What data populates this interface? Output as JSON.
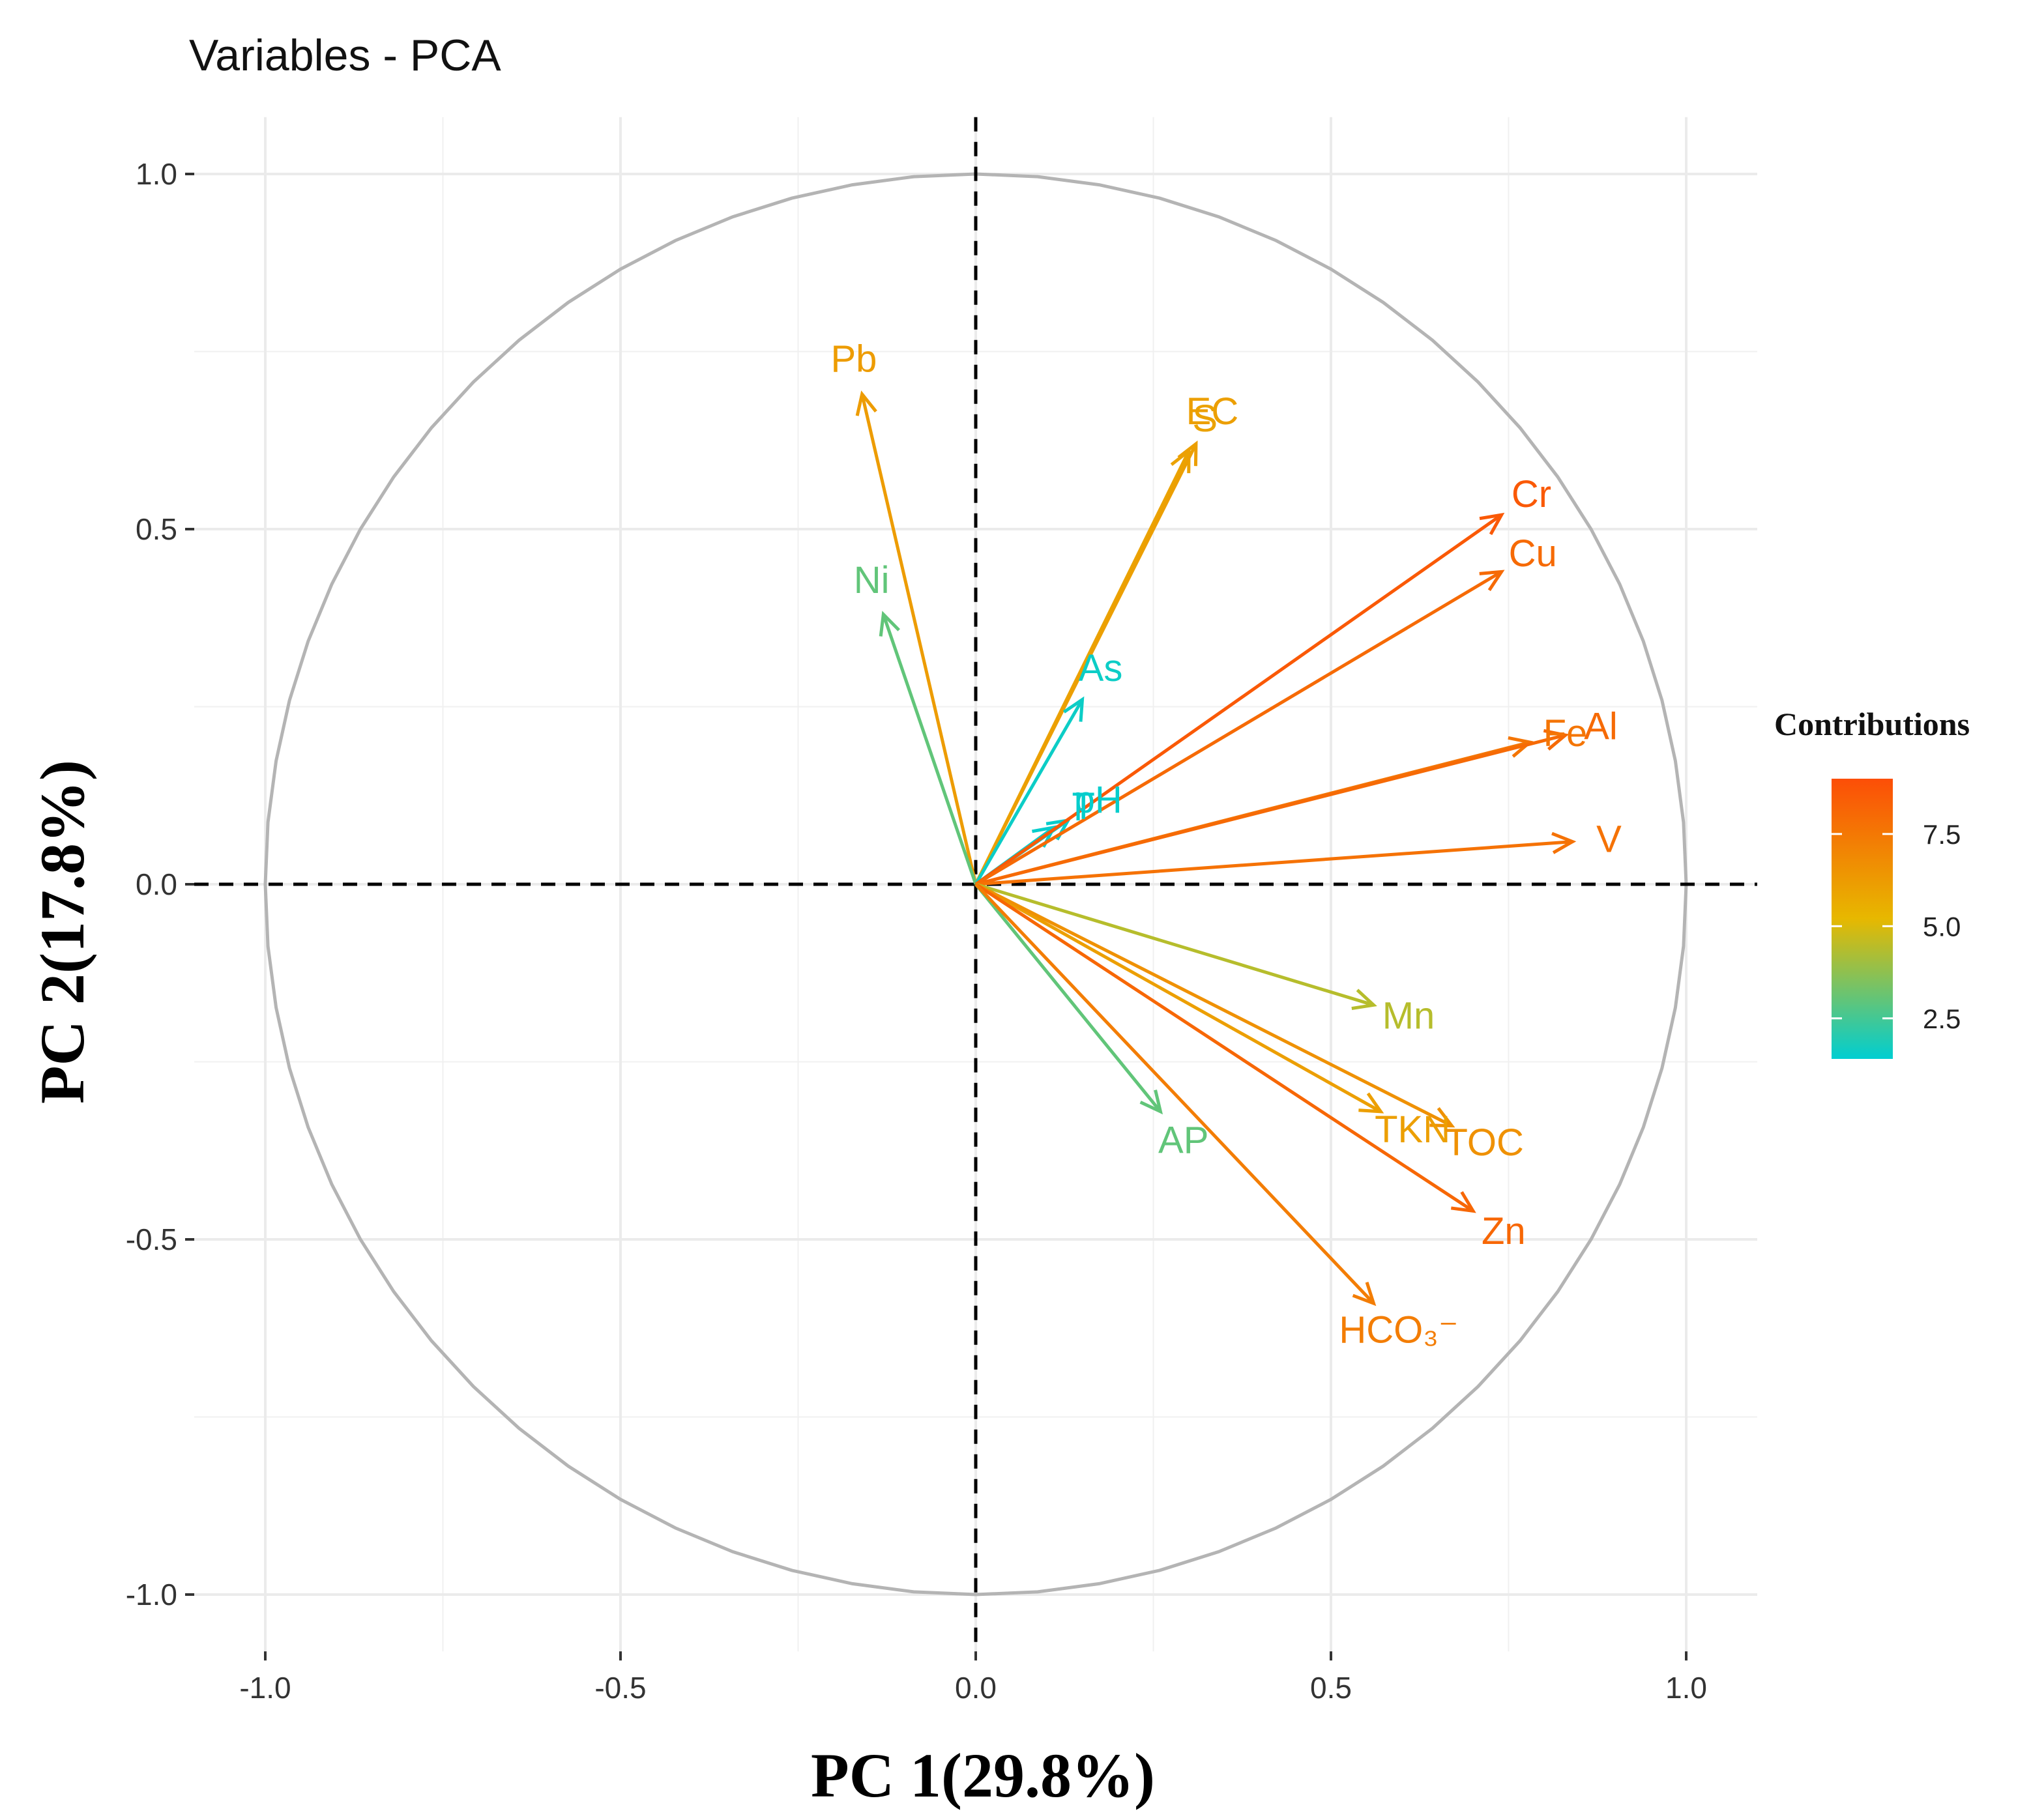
{
  "chart_data": {
    "type": "scatter",
    "subtype": "pca-variable-correlation-circle",
    "title": "Variables - PCA",
    "xlabel": "PC 1(29.8%)",
    "ylabel": "PC 2(17.8%)",
    "xlim": [
      -1.1,
      1.1
    ],
    "ylim": [
      -1.08,
      1.08
    ],
    "xticks": [
      -1.0,
      -0.5,
      0.0,
      0.5,
      1.0
    ],
    "xtick_labels": [
      "-1.0",
      "-0.5",
      "0.0",
      "0.5",
      "1.0"
    ],
    "yticks": [
      -1.0,
      -0.5,
      0.0,
      0.5,
      1.0
    ],
    "ytick_labels": [
      "-1.0",
      "-0.5",
      "0.0",
      "0.5",
      "1.0"
    ],
    "grid": true,
    "unit_circle": true,
    "reference_lines": {
      "x": 0,
      "y": 0,
      "style": "dashed"
    },
    "color_scale": {
      "title": "Contributions",
      "min": 1.4,
      "max": 9.0,
      "ticks": [
        2.5,
        5.0,
        7.5
      ],
      "tick_labels": [
        "2.5",
        "5.0",
        "7.5"
      ],
      "colors": [
        "#00CED1",
        "#E7B800",
        "#FC4E07"
      ],
      "legend_position": "right"
    },
    "variables": [
      {
        "name": "Pb",
        "x": -0.16,
        "y": 0.69,
        "contribution": 6.2
      },
      {
        "name": "Ni",
        "x": -0.13,
        "y": 0.38,
        "contribution": 3.0
      },
      {
        "name": "S",
        "x": 0.3,
        "y": 0.61,
        "contribution": 6.0
      },
      {
        "name": "EC",
        "x": 0.31,
        "y": 0.62,
        "contribution": 6.1
      },
      {
        "name": "As",
        "x": 0.15,
        "y": 0.26,
        "contribution": 1.6
      },
      {
        "name": "pH",
        "x": 0.13,
        "y": 0.09,
        "contribution": 1.5
      },
      {
        "name": "T",
        "x": 0.11,
        "y": 0.08,
        "contribution": 1.5
      },
      {
        "name": "Cr",
        "x": 0.74,
        "y": 0.52,
        "contribution": 8.6
      },
      {
        "name": "Cu",
        "x": 0.74,
        "y": 0.44,
        "contribution": 8.0
      },
      {
        "name": "Fe",
        "x": 0.78,
        "y": 0.2,
        "contribution": 7.6
      },
      {
        "name": "Al",
        "x": 0.83,
        "y": 0.21,
        "contribution": 8.0
      },
      {
        "name": "V",
        "x": 0.84,
        "y": 0.06,
        "contribution": 7.7
      },
      {
        "name": "Mn",
        "x": 0.56,
        "y": -0.17,
        "contribution": 4.4
      },
      {
        "name": "AP",
        "x": 0.26,
        "y": -0.32,
        "contribution": 3.0
      },
      {
        "name": "TKN",
        "x": 0.57,
        "y": -0.32,
        "contribution": 6.1
      },
      {
        "name": "TOC",
        "x": 0.67,
        "y": -0.34,
        "contribution": 6.6
      },
      {
        "name": "Zn",
        "x": 0.7,
        "y": -0.46,
        "contribution": 8.1
      },
      {
        "name": "HCO₃⁻",
        "x": 0.56,
        "y": -0.59,
        "contribution": 7.3
      }
    ]
  }
}
